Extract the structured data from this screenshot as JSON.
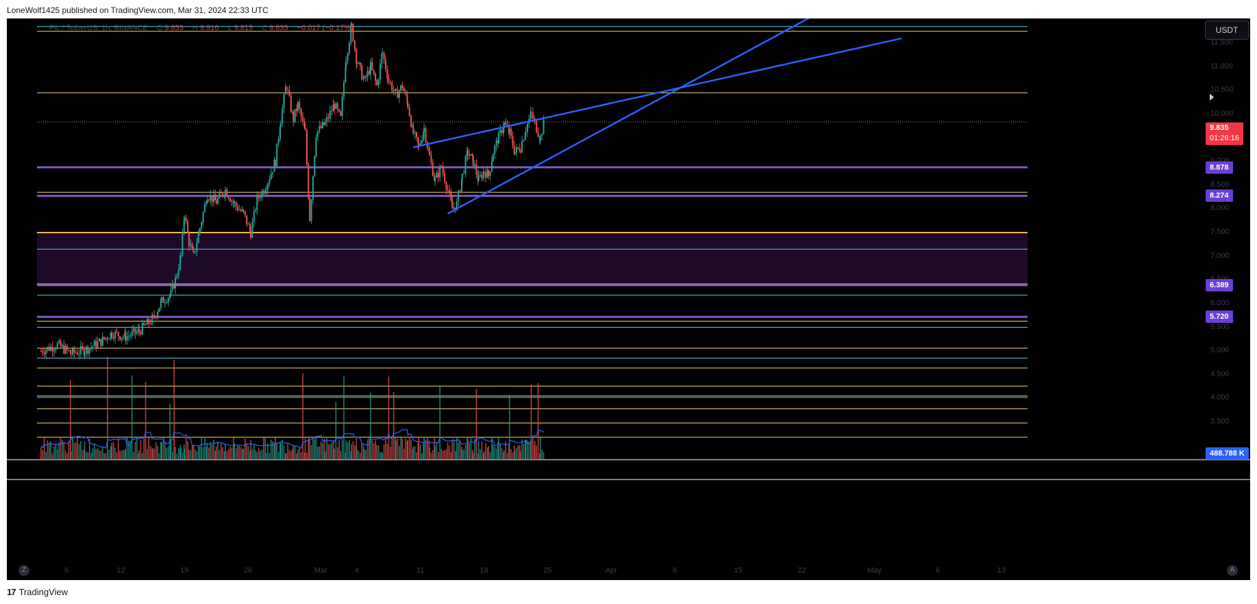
{
  "header": {
    "publisher_text": "LoneWolf1425 published on TradingView.com, Mar 31, 2024 22:33 UTC"
  },
  "legend": {
    "symbol": "FIL / TetherUS, 1h, BINANCE",
    "open_label": "O",
    "open": "9.853",
    "high_label": "H",
    "high": "9.916",
    "low_label": "L",
    "low": "9.815",
    "close_label": "C",
    "close": "9.835",
    "change": "−0.017 (−0.17%)"
  },
  "currency_button": "USDT",
  "price_tags": {
    "last_price": "9.835",
    "countdown": "01:26:16",
    "volume": "488.788 K"
  },
  "footer": {
    "logo": "17",
    "brand": "TradingView"
  },
  "controls": {
    "left_button": "Z",
    "right_button": "A"
  },
  "colors": {
    "background": "#000000",
    "candle_up": "#26a69a",
    "candle_down": "#ef5350",
    "yellow_level": "#f5d76e",
    "cyan_level": "#4dd0e1",
    "purple_level": "#7e57c2",
    "orange_level": "#ffb74d",
    "trendline": "#2962ff",
    "volume_ma": "#2962ff",
    "zone_fill": "#1e0a28"
  },
  "chart_data": {
    "type": "candlestick",
    "symbol": "FIL/USDT",
    "timeframe": "1h",
    "y_axis": {
      "ylim": [
        3.18,
        12.05
      ],
      "tick_labels": [
        "11.500",
        "11.000",
        "10.500",
        "10.000",
        "9.500",
        "9.000",
        "8.500",
        "8.000",
        "7.500",
        "7.000",
        "6.500",
        "6.000",
        "5.500",
        "5.000",
        "4.500",
        "4.000",
        "3.500"
      ],
      "tick_values": [
        11.5,
        11.0,
        10.5,
        10.0,
        9.5,
        9.0,
        8.5,
        8.0,
        7.5,
        7.0,
        6.5,
        6.0,
        5.5,
        5.0,
        4.5,
        4.0,
        3.5
      ]
    },
    "x_axis": {
      "day_range": [
        0.0,
        47.5
      ],
      "tick_labels": [
        "6",
        "12",
        "19",
        "26",
        "Mar",
        "4",
        "11",
        "18",
        "25",
        "Apr",
        "8",
        "15",
        "22",
        "May",
        "6",
        "13"
      ],
      "tick_days": [
        0.0,
        6.0,
        13.0,
        20.0,
        28.0,
        32.0,
        39.0,
        46.0,
        53.0,
        60.0,
        67.0,
        74.0,
        81.0,
        89.0,
        96.0,
        103.0
      ],
      "note": "x values are days from Feb 6, 2024"
    },
    "close_path": [
      [
        -2.8,
        5.0
      ],
      [
        -1.0,
        5.13
      ],
      [
        0.5,
        4.95
      ],
      [
        2.0,
        5.02
      ],
      [
        3.8,
        5.2
      ],
      [
        5.0,
        5.38
      ],
      [
        6.5,
        5.3
      ],
      [
        8.0,
        5.42
      ],
      [
        9.5,
        5.68
      ],
      [
        10.5,
        6.05
      ],
      [
        11.5,
        6.2
      ],
      [
        12.0,
        6.5
      ],
      [
        12.6,
        7.0
      ],
      [
        13.0,
        7.9
      ],
      [
        13.5,
        7.3
      ],
      [
        14.0,
        7.0
      ],
      [
        14.7,
        7.6
      ],
      [
        15.5,
        8.3
      ],
      [
        16.5,
        8.15
      ],
      [
        17.5,
        8.4
      ],
      [
        18.5,
        8.1
      ],
      [
        19.5,
        7.9
      ],
      [
        20.3,
        7.5
      ],
      [
        21.0,
        8.2
      ],
      [
        22.0,
        8.5
      ],
      [
        23.0,
        9.0
      ],
      [
        23.6,
        9.9
      ],
      [
        24.2,
        10.6
      ],
      [
        25.0,
        9.9
      ],
      [
        25.5,
        10.2
      ],
      [
        26.3,
        9.6
      ],
      [
        26.8,
        7.8
      ],
      [
        27.5,
        9.6
      ],
      [
        28.5,
        9.8
      ],
      [
        29.5,
        10.2
      ],
      [
        30.2,
        9.9
      ],
      [
        30.8,
        11.2
      ],
      [
        31.4,
        11.85
      ],
      [
        32.0,
        11.1
      ],
      [
        32.8,
        10.7
      ],
      [
        33.5,
        11.0
      ],
      [
        34.2,
        10.6
      ],
      [
        34.8,
        11.3
      ],
      [
        35.5,
        10.7
      ],
      [
        36.3,
        10.4
      ],
      [
        37.0,
        10.6
      ],
      [
        37.6,
        10.2
      ],
      [
        38.2,
        9.6
      ],
      [
        38.8,
        9.3
      ],
      [
        39.4,
        9.7
      ],
      [
        40.0,
        9.1
      ],
      [
        40.6,
        8.6
      ],
      [
        41.3,
        8.9
      ],
      [
        42.0,
        8.4
      ],
      [
        42.5,
        8.0
      ],
      [
        43.0,
        8.1
      ],
      [
        43.6,
        8.7
      ],
      [
        44.2,
        9.2
      ],
      [
        44.8,
        9.0
      ],
      [
        45.4,
        8.6
      ],
      [
        46.0,
        8.8
      ],
      [
        46.5,
        8.7
      ],
      [
        47.0,
        9.2
      ],
      [
        47.6,
        9.5
      ],
      [
        48.2,
        9.8
      ],
      [
        48.8,
        9.6
      ],
      [
        49.4,
        9.2
      ],
      [
        50.0,
        9.3
      ],
      [
        50.6,
        9.7
      ],
      [
        51.2,
        10.0
      ],
      [
        51.6,
        9.8
      ],
      [
        52.2,
        9.5
      ],
      [
        52.6,
        9.835
      ]
    ],
    "current_candle": {
      "open": 9.853,
      "high": 9.916,
      "low": 9.815,
      "close": 9.835
    },
    "horizontal_levels": [
      {
        "price": 11.85,
        "color": "cyan"
      },
      {
        "price": 11.75,
        "color": "yellow"
      },
      {
        "price": 10.45,
        "color": "yellow"
      },
      {
        "price": 9.835,
        "color": "gray",
        "dashed": true
      },
      {
        "price": 8.878,
        "color": "purple",
        "label": "8.878"
      },
      {
        "price": 8.35,
        "color": "yellow"
      },
      {
        "price": 8.274,
        "color": "purple",
        "label": "8.274"
      },
      {
        "price": 7.5,
        "color": "orange"
      },
      {
        "price": 7.15,
        "color": "cyan"
      },
      {
        "price": 6.41,
        "color": "orange"
      },
      {
        "price": 6.389,
        "color": "purple",
        "label": "6.389"
      },
      {
        "price": 6.18,
        "color": "cyan"
      },
      {
        "price": 5.72,
        "color": "purple",
        "label": "5.720"
      },
      {
        "price": 5.63,
        "color": "yellow"
      },
      {
        "price": 5.5,
        "color": "cyan"
      },
      {
        "price": 5.06,
        "color": "yellow"
      },
      {
        "price": 4.85,
        "color": "cyan"
      },
      {
        "price": 4.64,
        "color": "yellow"
      },
      {
        "price": 4.26,
        "color": "yellow"
      },
      {
        "price": 4.05,
        "color": "yellow"
      },
      {
        "price": 4.02,
        "color": "cyan"
      },
      {
        "price": 3.78,
        "color": "yellow"
      },
      {
        "price": 3.48,
        "color": "yellow"
      },
      {
        "price": 3.18,
        "color": "yellow"
      }
    ],
    "zone": {
      "from": 6.41,
      "to": 7.5
    },
    "trendlines": [
      {
        "from": [
          38.2,
          9.3
        ],
        "to": [
          92.0,
          11.6
        ]
      },
      {
        "from": [
          42.0,
          7.9
        ],
        "to": [
          82.0,
          12.05
        ]
      }
    ],
    "volume": {
      "last": "488.788 K"
    }
  }
}
